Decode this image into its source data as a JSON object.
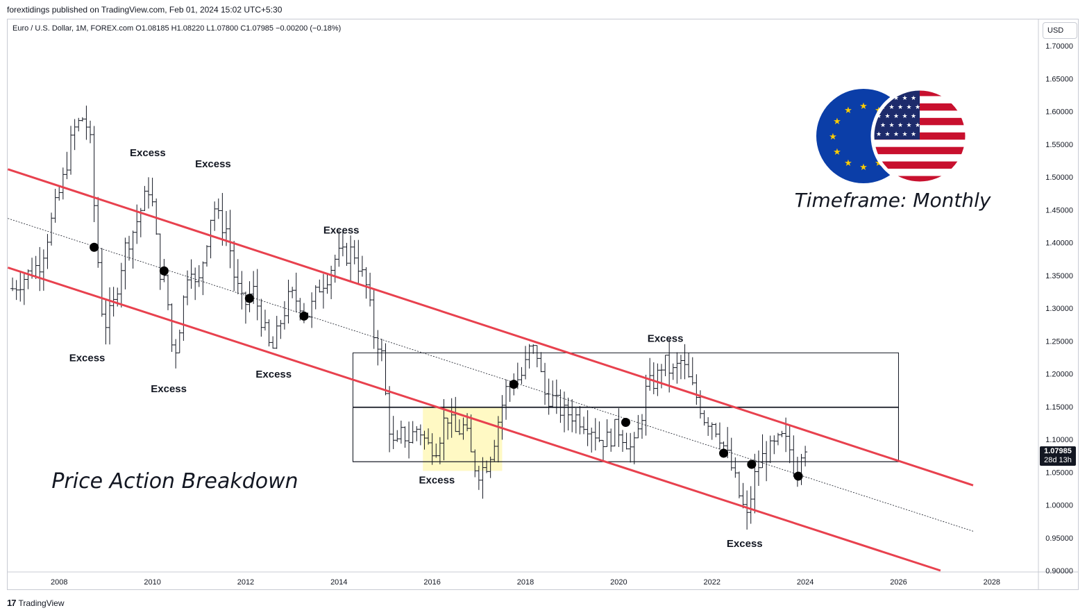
{
  "header": {
    "published": "forextidings published on TradingView.com, Feb 01, 2024 15:02 UTC+5:30",
    "symbol_info": "Euro / U.S. Dollar, 1M, FOREX.com  O1.08185  H1.08220  L1.07800  C1.07985  −0.00200 (−0.18%)",
    "currency": "USD"
  },
  "footer": {
    "brand": "TradingView"
  },
  "last_price": {
    "price": "1.07985",
    "countdown": "28d 13h"
  },
  "chart_data": {
    "type": "line",
    "title": "Euro / U.S. Dollar",
    "xlabel": "",
    "ylabel": "",
    "xlim": [
      2006.88,
      2029.0
    ],
    "ylim": [
      0.9,
      1.715
    ],
    "x_ticks": [
      {
        "x": 2008,
        "label": "2008"
      },
      {
        "x": 2010,
        "label": "2010"
      },
      {
        "x": 2012,
        "label": "2012"
      },
      {
        "x": 2014,
        "label": "2014"
      },
      {
        "x": 2016,
        "label": "2016"
      },
      {
        "x": 2018,
        "label": "2018"
      },
      {
        "x": 2020,
        "label": "2020"
      },
      {
        "x": 2022,
        "label": "2022"
      },
      {
        "x": 2024,
        "label": "2024"
      },
      {
        "x": 2026,
        "label": "2026"
      },
      {
        "x": 2028,
        "label": "2028"
      }
    ],
    "y_ticks": [
      {
        "y": 1.7,
        "label": "1.70000"
      },
      {
        "y": 1.65,
        "label": "1.65000"
      },
      {
        "y": 1.6,
        "label": "1.60000"
      },
      {
        "y": 1.55,
        "label": "1.55000"
      },
      {
        "y": 1.5,
        "label": "1.50000"
      },
      {
        "y": 1.45,
        "label": "1.45000"
      },
      {
        "y": 1.4,
        "label": "1.40000"
      },
      {
        "y": 1.35,
        "label": "1.35000"
      },
      {
        "y": 1.3,
        "label": "1.30000"
      },
      {
        "y": 1.25,
        "label": "1.25000"
      },
      {
        "y": 1.2,
        "label": "1.20000"
      },
      {
        "y": 1.15,
        "label": "1.15000"
      },
      {
        "y": 1.1,
        "label": "1.10000"
      },
      {
        "y": 1.05,
        "label": "1.05000"
      },
      {
        "y": 1.0,
        "label": "1.00000"
      },
      {
        "y": 0.95,
        "label": "0.95000"
      },
      {
        "y": 0.9,
        "label": "0.90000"
      }
    ],
    "price_series": [
      [
        2007.0,
        1.33
      ],
      [
        2007.3,
        1.35
      ],
      [
        2007.6,
        1.37
      ],
      [
        2007.9,
        1.45
      ],
      [
        2008.1,
        1.5
      ],
      [
        2008.3,
        1.57
      ],
      [
        2008.5,
        1.59
      ],
      [
        2008.65,
        1.57
      ],
      [
        2008.8,
        1.4
      ],
      [
        2008.95,
        1.27
      ],
      [
        2009.15,
        1.3
      ],
      [
        2009.4,
        1.39
      ],
      [
        2009.6,
        1.42
      ],
      [
        2009.8,
        1.46
      ],
      [
        2009.95,
        1.49
      ],
      [
        2010.15,
        1.36
      ],
      [
        2010.3,
        1.33
      ],
      [
        2010.45,
        1.22
      ],
      [
        2010.6,
        1.28
      ],
      [
        2010.8,
        1.38
      ],
      [
        2010.95,
        1.32
      ],
      [
        2011.15,
        1.4
      ],
      [
        2011.3,
        1.46
      ],
      [
        2011.45,
        1.43
      ],
      [
        2011.6,
        1.42
      ],
      [
        2011.75,
        1.35
      ],
      [
        2011.95,
        1.3
      ],
      [
        2012.15,
        1.33
      ],
      [
        2012.35,
        1.28
      ],
      [
        2012.55,
        1.23
      ],
      [
        2012.75,
        1.28
      ],
      [
        2012.95,
        1.32
      ],
      [
        2013.15,
        1.31
      ],
      [
        2013.35,
        1.29
      ],
      [
        2013.55,
        1.33
      ],
      [
        2013.75,
        1.35
      ],
      [
        2013.95,
        1.38
      ],
      [
        2014.15,
        1.38
      ],
      [
        2014.3,
        1.39
      ],
      [
        2014.45,
        1.36
      ],
      [
        2014.6,
        1.33
      ],
      [
        2014.75,
        1.26
      ],
      [
        2014.9,
        1.24
      ],
      [
        2015.05,
        1.13
      ],
      [
        2015.2,
        1.08
      ],
      [
        2015.35,
        1.11
      ],
      [
        2015.5,
        1.1
      ],
      [
        2015.7,
        1.12
      ],
      [
        2015.9,
        1.09
      ],
      [
        2016.1,
        1.09
      ],
      [
        2016.3,
        1.14
      ],
      [
        2016.5,
        1.11
      ],
      [
        2016.7,
        1.12
      ],
      [
        2016.85,
        1.07
      ],
      [
        2016.98,
        1.05
      ],
      [
        2017.15,
        1.06
      ],
      [
        2017.3,
        1.09
      ],
      [
        2017.45,
        1.14
      ],
      [
        2017.6,
        1.18
      ],
      [
        2017.8,
        1.19
      ],
      [
        2017.95,
        1.2
      ],
      [
        2018.1,
        1.24
      ],
      [
        2018.25,
        1.23
      ],
      [
        2018.4,
        1.17
      ],
      [
        2018.6,
        1.16
      ],
      [
        2018.8,
        1.14
      ],
      [
        2018.95,
        1.14
      ],
      [
        2019.2,
        1.13
      ],
      [
        2019.4,
        1.12
      ],
      [
        2019.6,
        1.1
      ],
      [
        2019.8,
        1.1
      ],
      [
        2019.95,
        1.12
      ],
      [
        2020.15,
        1.1
      ],
      [
        2020.3,
        1.08
      ],
      [
        2020.45,
        1.12
      ],
      [
        2020.6,
        1.18
      ],
      [
        2020.8,
        1.19
      ],
      [
        2020.95,
        1.22
      ],
      [
        2021.15,
        1.2
      ],
      [
        2021.35,
        1.22
      ],
      [
        2021.5,
        1.19
      ],
      [
        2021.7,
        1.16
      ],
      [
        2021.85,
        1.13
      ],
      [
        2021.98,
        1.13
      ],
      [
        2022.15,
        1.11
      ],
      [
        2022.3,
        1.08
      ],
      [
        2022.45,
        1.05
      ],
      [
        2022.6,
        1.01
      ],
      [
        2022.75,
        0.98
      ],
      [
        2022.9,
        1.04
      ],
      [
        2023.05,
        1.07
      ],
      [
        2023.2,
        1.08
      ],
      [
        2023.35,
        1.09
      ],
      [
        2023.5,
        1.1
      ],
      [
        2023.65,
        1.09
      ],
      [
        2023.75,
        1.06
      ],
      [
        2023.85,
        1.06
      ],
      [
        2023.95,
        1.1
      ],
      [
        2024.08,
        1.08
      ]
    ],
    "channel_upper": {
      "x": [
        2006.9,
        2027.6
      ],
      "y": [
        1.512,
        1.03
      ]
    },
    "channel_lower": {
      "x": [
        2006.9,
        2026.9
      ],
      "y": [
        1.362,
        0.9
      ]
    },
    "channel_mid": {
      "x": [
        2006.9,
        2027.6
      ],
      "y": [
        1.437,
        0.96
      ]
    },
    "box_upper": {
      "x": [
        2014.3,
        2026.0
      ],
      "y": [
        1.066,
        1.232
      ]
    },
    "box_lower": {
      "x": [
        2014.3,
        2026.0
      ],
      "y": [
        1.066,
        1.149
      ]
    },
    "box_midline": {
      "x": [
        2014.3,
        2026.0
      ],
      "y": 1.149
    },
    "highlight_zone": {
      "x": [
        2015.8,
        2017.5
      ],
      "y": [
        1.052,
        1.149
      ],
      "color": "#fff9c4"
    },
    "touch_points": [
      {
        "x": 2008.75,
        "y": 1.393
      },
      {
        "x": 2010.25,
        "y": 1.357
      },
      {
        "x": 2012.08,
        "y": 1.315
      },
      {
        "x": 2013.25,
        "y": 1.288
      },
      {
        "x": 2017.75,
        "y": 1.184
      },
      {
        "x": 2020.15,
        "y": 1.126
      },
      {
        "x": 2022.25,
        "y": 1.079
      },
      {
        "x": 2022.85,
        "y": 1.062
      },
      {
        "x": 2023.85,
        "y": 1.044
      }
    ],
    "annotations": [
      {
        "text": "Excess",
        "x": 2009.9,
        "y": 1.532
      },
      {
        "text": "Excess",
        "x": 2011.3,
        "y": 1.515
      },
      {
        "text": "Excess",
        "x": 2008.6,
        "y": 1.219
      },
      {
        "text": "Excess",
        "x": 2010.35,
        "y": 1.172
      },
      {
        "text": "Excess",
        "x": 2012.6,
        "y": 1.194
      },
      {
        "text": "Excess",
        "x": 2014.05,
        "y": 1.414
      },
      {
        "text": "Excess",
        "x": 2016.1,
        "y": 1.033
      },
      {
        "text": "Excess",
        "x": 2021.0,
        "y": 1.249
      },
      {
        "text": "Excess",
        "x": 2022.7,
        "y": 0.936
      }
    ],
    "colors": {
      "channel": "#e8414e",
      "mid": "#131722",
      "box": "#131722",
      "dot": "#000000"
    }
  },
  "overlay": {
    "timeframe_label": "Timeframe: Monthly",
    "title_label": "Price Action Breakdown",
    "eu_flag_color": "#0b3ea8",
    "us_flag_red": "#c8102e",
    "us_flag_blue": "#1d2b6b",
    "star_color": "#ffcc00"
  }
}
